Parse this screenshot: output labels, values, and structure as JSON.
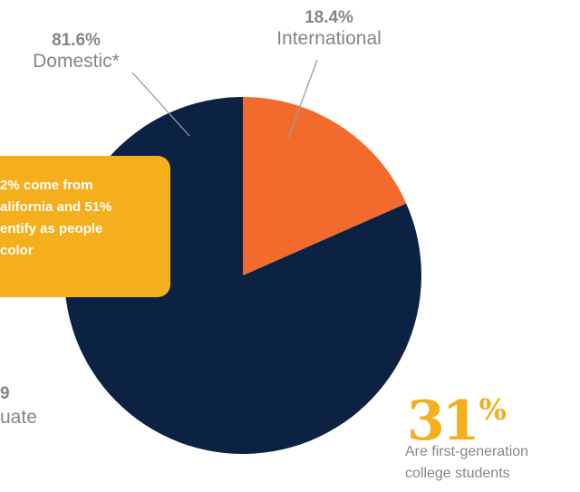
{
  "colors": {
    "domestic": "#0c2242",
    "international": "#f26a2c",
    "callout": "#f5ae1c",
    "label_gray": "#8a8583",
    "leader_line": "#9e9a98"
  },
  "chart_data": {
    "type": "pie",
    "slices": [
      {
        "label": "International",
        "percent_label": "18.4%",
        "value": 18.4,
        "color": "#f26a2c"
      },
      {
        "label": "Domestic*",
        "percent_label": "81.6%",
        "value": 81.6,
        "color": "#0c2242"
      }
    ],
    "start": "12 o'clock, clockwise",
    "legend": "none"
  },
  "callout": {
    "text": "2% come from\nalifornia and 51%\nentify as people\ncolor"
  },
  "graduate_stat": {
    "number": "9",
    "label": "uate"
  },
  "first_gen": {
    "number": "31",
    "symbol": "%",
    "description": "Are first-generation college students"
  }
}
